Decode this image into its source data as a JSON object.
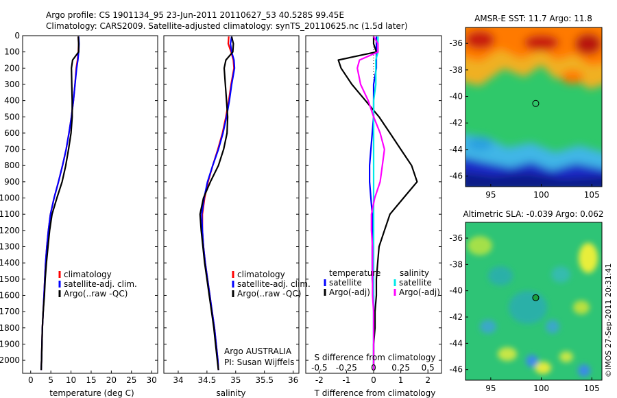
{
  "header": {
    "line1": "Argo profile: CS 1901134_95 23-Jun-2011 20110627_53 40.528S 99.45E",
    "line2": "Climatology: CARS2009. Satellite-adjusted climatology: synTS_20110625.nc (1.5d later)"
  },
  "side_label": "©IMOS 27-Sep-2011 20:31:41",
  "colors": {
    "climatology": "#ff0000",
    "satellite": "#0000ff",
    "argo": "#000000",
    "sat_salinity": "#00e8e8",
    "argo_salinity": "#ff00ff"
  },
  "chart_data": [
    {
      "type": "line",
      "id": "temperature",
      "xlabel": "temperature (deg C)",
      "ylabel": "",
      "xlim": [
        -2,
        31.5
      ],
      "ylim": [
        2080,
        0
      ],
      "xticks": [
        0,
        5,
        10,
        15,
        20,
        25,
        30
      ],
      "yticks": [
        0,
        100,
        200,
        300,
        400,
        500,
        600,
        700,
        800,
        900,
        1000,
        1100,
        1200,
        1300,
        1400,
        1500,
        1600,
        1700,
        1800,
        1900,
        2000
      ],
      "depth": [
        5,
        50,
        100,
        150,
        200,
        300,
        400,
        500,
        600,
        700,
        800,
        900,
        1000,
        1100,
        1200,
        1300,
        1400,
        1500,
        1600,
        1700,
        1800,
        1900,
        2000,
        2060
      ],
      "series": [
        {
          "name": "climatology",
          "color": "#ff0000",
          "values": [
            11.8,
            11.9,
            11.8,
            11.6,
            11.3,
            11.0,
            10.6,
            10.1,
            9.5,
            8.8,
            7.9,
            6.9,
            5.8,
            4.9,
            4.4,
            4.0,
            3.7,
            3.5,
            3.3,
            3.1,
            2.9,
            2.8,
            2.7,
            2.6
          ]
        },
        {
          "name": "satellite-adj. clim.",
          "color": "#0000ff",
          "values": [
            11.9,
            12.0,
            11.9,
            11.7,
            11.4,
            11.0,
            10.6,
            10.1,
            9.5,
            8.8,
            7.9,
            6.9,
            5.8,
            4.9,
            4.4,
            4.0,
            3.7,
            3.5,
            3.3,
            3.1,
            2.9,
            2.8,
            2.7,
            2.6
          ]
        },
        {
          "name": "Argo(..raw -QC)",
          "color": "#000000",
          "values": [
            11.8,
            11.9,
            11.9,
            10.4,
            10.1,
            10.2,
            10.3,
            10.3,
            10.0,
            9.4,
            8.7,
            7.8,
            6.5,
            5.3,
            4.7,
            4.3,
            3.9,
            3.6,
            3.4,
            3.1,
            2.9,
            2.8,
            2.7,
            2.6
          ]
        }
      ],
      "legend": [
        "climatology",
        "satellite-adj. clim.",
        "Argo(..raw -QC)"
      ],
      "legend_position": "lower-right"
    },
    {
      "type": "line",
      "id": "salinity",
      "xlabel": "salinity",
      "ylabel": "",
      "xlim": [
        33.75,
        36.1
      ],
      "ylim": [
        2080,
        0
      ],
      "xticks": [
        34,
        34.5,
        35,
        35.5,
        36
      ],
      "xtick_labels": [
        "34",
        "34.5",
        "35",
        "35.5",
        "36"
      ],
      "depth": [
        5,
        50,
        100,
        150,
        200,
        300,
        400,
        500,
        600,
        700,
        800,
        900,
        1000,
        1100,
        1200,
        1300,
        1400,
        1500,
        1600,
        1700,
        1800,
        1900,
        2000,
        2060
      ],
      "series": [
        {
          "name": "climatology",
          "color": "#ff0000",
          "values": [
            34.88,
            34.87,
            34.92,
            34.96,
            34.97,
            34.92,
            34.88,
            34.83,
            34.77,
            34.69,
            34.6,
            34.52,
            34.46,
            34.42,
            34.42,
            34.44,
            34.47,
            34.51,
            34.55,
            34.59,
            34.63,
            34.66,
            34.69,
            34.7
          ]
        },
        {
          "name": "satellite-adj. clim.",
          "color": "#0000ff",
          "values": [
            34.93,
            34.91,
            34.93,
            34.97,
            34.98,
            34.93,
            34.89,
            34.84,
            34.78,
            34.7,
            34.6,
            34.51,
            34.45,
            34.41,
            34.42,
            34.44,
            34.47,
            34.51,
            34.55,
            34.59,
            34.63,
            34.66,
            34.69,
            34.7
          ]
        },
        {
          "name": "Argo(..raw -QC)",
          "color": "#000000",
          "values": [
            34.93,
            34.96,
            34.95,
            34.83,
            34.8,
            34.82,
            34.84,
            34.86,
            34.85,
            34.79,
            34.7,
            34.56,
            34.44,
            34.38,
            34.4,
            34.43,
            34.46,
            34.5,
            34.54,
            34.58,
            34.62,
            34.65,
            34.68,
            34.7
          ]
        }
      ],
      "legend": [
        "climatology",
        "satellite-adj. clim.",
        "Argo(..raw -QC)"
      ],
      "legend_position": "lower-right",
      "annotation": [
        "Argo AUSTRALIA",
        "PI: Susan Wijffels"
      ]
    },
    {
      "type": "line",
      "id": "differences",
      "xlabel": "T difference from climatology",
      "xlabel_top": "S difference from climatology",
      "xlim": [
        -2.5,
        2.5
      ],
      "ylim": [
        2080,
        0
      ],
      "xticks": [
        -2,
        -1,
        0,
        1,
        2
      ],
      "xticks_top": [
        -0.5,
        -0.25,
        0,
        0.25,
        0.5
      ],
      "xtick_top_labels": [
        "-0.5",
        "-0.25",
        "0",
        "0.25",
        "0.5"
      ],
      "s_scale_note": "S axis: 0.25 salinity units per 1 deg C",
      "depth": [
        5,
        50,
        100,
        150,
        200,
        300,
        400,
        500,
        600,
        700,
        800,
        900,
        1000,
        1100,
        1200,
        1300,
        1400,
        1500,
        1600,
        1700,
        1800,
        1900,
        2000,
        2060
      ],
      "series": [
        {
          "name": "temperature satellite",
          "quantity": "T",
          "color": "#0000ff",
          "values": [
            0.1,
            0.1,
            0.1,
            0.1,
            0.1,
            0.0,
            0.0,
            0.0,
            -0.05,
            -0.1,
            -0.15,
            -0.15,
            -0.1,
            -0.05,
            -0.05,
            -0.05,
            -0.05,
            -0.05,
            0.0,
            0.0,
            0.0,
            0.0,
            0.0,
            0.0
          ]
        },
        {
          "name": "temperature Argo(-adj)",
          "quantity": "T",
          "color": "#000000",
          "values": [
            0.0,
            0.0,
            0.1,
            -1.3,
            -1.2,
            -0.8,
            -0.3,
            0.2,
            0.6,
            1.0,
            1.4,
            1.6,
            1.1,
            0.6,
            0.4,
            0.2,
            0.15,
            0.1,
            0.1,
            0.05,
            0.05,
            0.0,
            0.0,
            0.0
          ]
        },
        {
          "name": "salinity satellite",
          "quantity": "S",
          "color": "#00e8e8",
          "values": [
            0.04,
            0.04,
            0.04,
            0.02,
            0.02,
            0.02,
            0.0,
            0.0,
            0.0,
            0.0,
            0.0,
            0.0,
            0.0,
            0.0,
            0.0,
            0.0,
            0.0,
            0.0,
            0.0,
            0.0,
            0.0,
            0.0,
            0.0,
            0.0
          ]
        },
        {
          "name": "salinity Argo(-adj)",
          "quantity": "S",
          "color": "#ff00ff",
          "values": [
            0.0,
            0.04,
            0.04,
            -0.13,
            -0.15,
            -0.12,
            -0.05,
            0.0,
            0.06,
            0.1,
            0.08,
            0.06,
            0.01,
            -0.02,
            -0.02,
            -0.01,
            -0.01,
            -0.01,
            -0.01,
            0.0,
            0.0,
            0.0,
            0.0,
            0.0
          ]
        }
      ],
      "legend_titles": [
        "temperature",
        "salinity"
      ],
      "legend": [
        {
          "label": "satellite",
          "color": "#0000ff"
        },
        {
          "label": "Argo(-adj)",
          "color": "#000000"
        },
        {
          "label": "satellite",
          "color": "#00e8e8"
        },
        {
          "label": "Argo(-adj)",
          "color": "#ff00ff"
        }
      ]
    },
    {
      "type": "heatmap",
      "id": "sst-map",
      "title": "AMSR-E SST: 11.7 Argo: 11.8",
      "xlim": [
        92.5,
        106
      ],
      "ylim": [
        -46.8,
        -34.8
      ],
      "xticks": [
        95,
        100,
        105
      ],
      "yticks": [
        -36,
        -38,
        -40,
        -42,
        -44,
        -46
      ],
      "marker": {
        "lon": 99.45,
        "lat": -40.53
      }
    },
    {
      "type": "heatmap",
      "id": "sla-map",
      "title": "Altimetric SLA: -0.039 Argo: 0.062",
      "xlim": [
        92.5,
        106
      ],
      "ylim": [
        -46.8,
        -34.8
      ],
      "xticks": [
        95,
        100,
        105
      ],
      "yticks": [
        -36,
        -38,
        -40,
        -42,
        -44,
        -46
      ],
      "marker": {
        "lon": 99.45,
        "lat": -40.53
      }
    }
  ]
}
